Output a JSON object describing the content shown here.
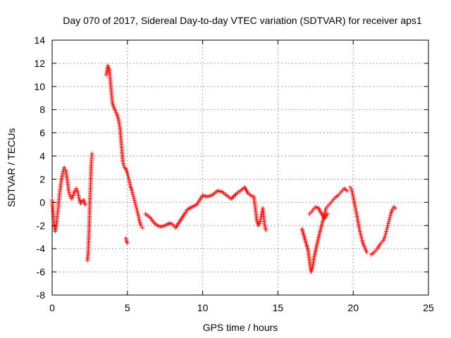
{
  "chart_data": {
    "type": "scatter",
    "title": "Day 070 of 2017, Sidereal Day-to-day VTEC variation (SDTVAR) for receiver aps1",
    "xlabel": "GPS time / hours",
    "ylabel": "SDTVAR / TECUs",
    "xlim": [
      0,
      25
    ],
    "ylim": [
      -8,
      14
    ],
    "xticks": [
      0,
      5,
      10,
      15,
      20,
      25
    ],
    "yticks": [
      -8,
      -6,
      -4,
      -2,
      0,
      2,
      4,
      6,
      8,
      10,
      12,
      14
    ],
    "grid": true,
    "marker": "+",
    "marker_color": "#ff0000",
    "series": [
      {
        "name": "aps1",
        "segments": [
          {
            "x": [
              0.0,
              0.1,
              0.2,
              0.3,
              0.4,
              0.5,
              0.6,
              0.7,
              0.8,
              0.9,
              1.0,
              1.1,
              1.2,
              1.3,
              1.4,
              1.5,
              1.6,
              1.7,
              1.8,
              1.9,
              2.0,
              2.1,
              2.2
            ],
            "y": [
              0.2,
              -1.5,
              -2.5,
              -1.8,
              -0.5,
              0.8,
              1.8,
              2.5,
              3.0,
              2.8,
              2.0,
              1.0,
              0.5,
              0.3,
              0.6,
              1.0,
              1.2,
              0.9,
              0.3,
              -0.1,
              0.1,
              0.2,
              -0.2
            ]
          },
          {
            "x": [
              2.35,
              2.4,
              2.45,
              2.5,
              2.55,
              2.6,
              2.65
            ],
            "y": [
              -5.0,
              -4.2,
              -2.5,
              -0.5,
              1.5,
              3.3,
              4.2
            ]
          },
          {
            "x": [
              3.6,
              3.7,
              3.8,
              3.9,
              4.0,
              4.1,
              4.2,
              4.3,
              4.4,
              4.5,
              4.6,
              4.7,
              4.8,
              4.9,
              5.0,
              5.1,
              5.2,
              5.3,
              5.4,
              5.5,
              5.6,
              5.7,
              5.8,
              5.9,
              6.0
            ],
            "y": [
              11.0,
              11.8,
              11.5,
              10.0,
              8.6,
              8.2,
              7.9,
              7.6,
              7.2,
              6.5,
              5.0,
              3.5,
              3.0,
              2.9,
              2.5,
              2.0,
              1.4,
              1.0,
              0.5,
              0.0,
              -0.5,
              -1.0,
              -1.6,
              -2.0,
              -2.2
            ]
          },
          {
            "x": [
              4.9,
              4.95,
              5.0
            ],
            "y": [
              -3.1,
              -3.4,
              -3.5
            ]
          },
          {
            "x": [
              6.2,
              6.5,
              6.8,
              7.0,
              7.2,
              7.5,
              7.8,
              8.0,
              8.2,
              8.5,
              8.8,
              9.0,
              9.3,
              9.6,
              9.8,
              10.0,
              10.3,
              10.6,
              11.0,
              11.3,
              11.6,
              11.9,
              12.2,
              12.5,
              12.8,
              13.0,
              13.3
            ],
            "y": [
              -1.0,
              -1.3,
              -1.8,
              -2.0,
              -2.1,
              -2.0,
              -1.8,
              -1.9,
              -2.2,
              -1.6,
              -1.0,
              -0.6,
              -0.4,
              -0.2,
              0.2,
              0.6,
              0.5,
              0.6,
              1.0,
              0.9,
              0.6,
              0.3,
              0.7,
              1.0,
              1.3,
              0.8,
              0.5
            ]
          },
          {
            "x": [
              13.4,
              13.5,
              13.6,
              13.7,
              13.8,
              13.9,
              14.0,
              14.1,
              14.2
            ],
            "y": [
              0.5,
              -0.5,
              -1.6,
              -2.0,
              -1.8,
              -1.2,
              -0.5,
              -1.8,
              -2.4
            ]
          },
          {
            "x": [
              16.6,
              16.8,
              17.0,
              17.2,
              17.3,
              17.4,
              17.6,
              17.8,
              18.0,
              18.2,
              18.4,
              18.6,
              18.8,
              19.0,
              19.2,
              19.4,
              19.6
            ],
            "y": [
              -2.3,
              -3.2,
              -4.1,
              -6.0,
              -5.6,
              -4.8,
              -3.6,
              -2.5,
              -1.5,
              -0.5,
              -0.2,
              0.1,
              0.4,
              0.6,
              0.9,
              1.2,
              1.0
            ]
          },
          {
            "x": [
              17.1,
              17.3,
              17.5,
              17.7,
              17.9,
              18.1,
              18.3
            ],
            "y": [
              -1.0,
              -0.7,
              -0.4,
              -0.5,
              -1.0,
              -1.4,
              -1.0
            ]
          },
          {
            "x": [
              19.8,
              19.9,
              20.0,
              20.1,
              20.2,
              20.3,
              20.4,
              20.5,
              20.6,
              20.7,
              20.8,
              20.9
            ],
            "y": [
              1.3,
              1.1,
              0.5,
              -0.2,
              -0.8,
              -1.5,
              -2.2,
              -2.8,
              -3.3,
              -3.7,
              -4.0,
              -4.3
            ]
          },
          {
            "x": [
              21.2,
              21.4,
              21.6,
              21.8,
              22.0,
              22.1,
              22.2,
              22.3,
              22.4,
              22.5,
              22.6,
              22.7,
              22.8
            ],
            "y": [
              -4.5,
              -4.3,
              -4.0,
              -3.6,
              -3.3,
              -3.0,
              -2.5,
              -2.0,
              -1.5,
              -1.0,
              -0.6,
              -0.4,
              -0.5
            ]
          }
        ]
      }
    ]
  }
}
